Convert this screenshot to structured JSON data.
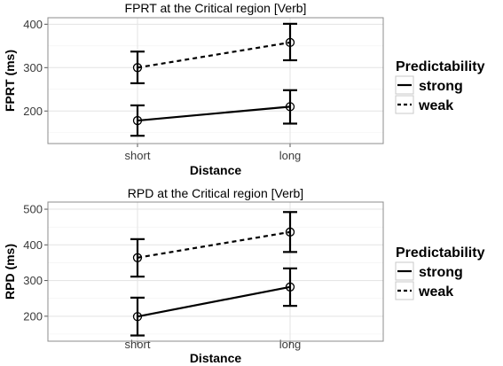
{
  "chart_data": [
    {
      "type": "line",
      "title": "FPRT at the Critical region [Verb]",
      "xlabel": "Distance",
      "ylabel": "FPRT (ms)",
      "categories": [
        "short",
        "long"
      ],
      "ylim": [
        125,
        415
      ],
      "yticks": [
        200,
        300,
        400
      ],
      "grid": true,
      "legend": {
        "title": "Predictability",
        "position": "right"
      },
      "series": [
        {
          "name": "strong",
          "linestyle": "solid",
          "values": [
            178,
            210
          ],
          "lower": [
            143,
            171
          ],
          "upper": [
            213,
            248
          ]
        },
        {
          "name": "weak",
          "linestyle": "dashed",
          "values": [
            300,
            358
          ],
          "lower": [
            264,
            317
          ],
          "upper": [
            337,
            401
          ]
        }
      ]
    },
    {
      "type": "line",
      "title": "RPD at the Critical region [Verb]",
      "xlabel": "Distance",
      "ylabel": "RPD (ms)",
      "categories": [
        "short",
        "long"
      ],
      "ylim": [
        130,
        520
      ],
      "yticks": [
        200,
        300,
        400,
        500
      ],
      "grid": true,
      "legend": {
        "title": "Predictability",
        "position": "right"
      },
      "series": [
        {
          "name": "strong",
          "linestyle": "solid",
          "values": [
            199,
            282
          ],
          "lower": [
            146,
            229
          ],
          "upper": [
            252,
            334
          ]
        },
        {
          "name": "weak",
          "linestyle": "dashed",
          "values": [
            364,
            436
          ],
          "lower": [
            311,
            380
          ],
          "upper": [
            416,
            492
          ]
        }
      ]
    }
  ]
}
